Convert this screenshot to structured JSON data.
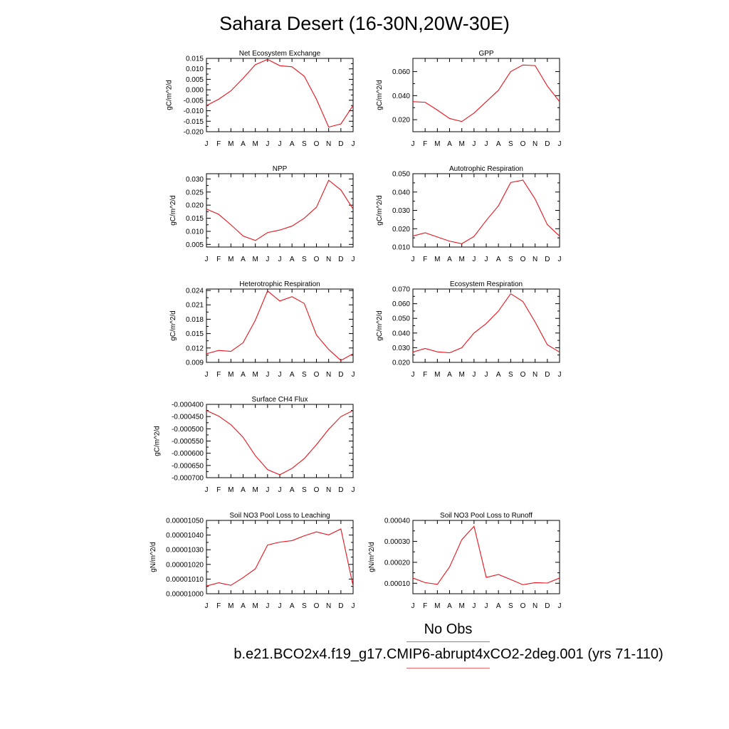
{
  "title": "Sahara Desert (16-30N,20W-30E)",
  "months": [
    "J",
    "F",
    "M",
    "A",
    "M",
    "J",
    "J",
    "A",
    "S",
    "O",
    "N",
    "D",
    "J"
  ],
  "line_color": "#e8141e",
  "legend": {
    "obs_label": "No Obs",
    "obs_color": "#7a7ae6",
    "model_label": "b.e21.BCO2x4.f19_g17.CMIP6-abrupt4xCO2-2deg.001 (yrs 71-110)",
    "model_color": "#e86a6a"
  },
  "chart_data": [
    {
      "type": "line",
      "title": "Net Ecosystem Exchange",
      "ylabel": "gC/m^2/d",
      "ylim": [
        -0.02,
        0.015
      ],
      "yticks": [
        0.015,
        0.01,
        0.005,
        0.0,
        -0.005,
        -0.01,
        -0.015,
        -0.02
      ],
      "ytick_labels": [
        "0.015",
        "0.010",
        "0.005",
        "0.000",
        "-0.005",
        "-0.010",
        "-0.015",
        "-0.020"
      ],
      "values": [
        -0.0075,
        -0.0045,
        -0.0005,
        0.0055,
        0.012,
        0.0145,
        0.0115,
        0.011,
        0.0065,
        -0.0045,
        -0.0178,
        -0.0163,
        -0.0075
      ]
    },
    {
      "type": "line",
      "title": "GPP",
      "ylabel": "gC/m^2/d",
      "ylim": [
        0.01,
        0.071
      ],
      "yticks": [
        0.06,
        0.04,
        0.02
      ],
      "ytick_labels": [
        "0.060",
        "0.040",
        "0.020"
      ],
      "values": [
        0.035,
        0.0345,
        0.028,
        0.021,
        0.0185,
        0.0255,
        0.035,
        0.0445,
        0.06,
        0.0655,
        0.065,
        0.048,
        0.035
      ]
    },
    {
      "type": "line",
      "title": "NPP",
      "ylabel": "gC/m^2/d",
      "ylim": [
        0.004,
        0.032
      ],
      "yticks": [
        0.03,
        0.025,
        0.02,
        0.015,
        0.01,
        0.005
      ],
      "ytick_labels": [
        "0.030",
        "0.025",
        "0.020",
        "0.015",
        "0.010",
        "0.005"
      ],
      "values": [
        0.0185,
        0.0165,
        0.0125,
        0.0082,
        0.0065,
        0.0095,
        0.0105,
        0.012,
        0.015,
        0.0192,
        0.0295,
        0.0258,
        0.0185
      ]
    },
    {
      "type": "line",
      "title": "Autotrophic Respiration",
      "ylabel": "gC/m^2/d",
      "ylim": [
        0.01,
        0.05
      ],
      "yticks": [
        0.05,
        0.04,
        0.03,
        0.02,
        0.01
      ],
      "ytick_labels": [
        "0.050",
        "0.040",
        "0.030",
        "0.020",
        "0.010"
      ],
      "values": [
        0.016,
        0.0178,
        0.0155,
        0.0132,
        0.0118,
        0.0158,
        0.0245,
        0.0325,
        0.0452,
        0.0465,
        0.0362,
        0.0222,
        0.016
      ]
    },
    {
      "type": "line",
      "title": "Heterotrophic Respiration",
      "ylabel": "gC/m^2/d",
      "ylim": [
        0.009,
        0.0243
      ],
      "yticks": [
        0.024,
        0.021,
        0.018,
        0.015,
        0.012,
        0.009
      ],
      "ytick_labels": [
        "0.024",
        "0.021",
        "0.018",
        "0.015",
        "0.012",
        "0.009"
      ],
      "values": [
        0.0108,
        0.0115,
        0.0113,
        0.0131,
        0.0178,
        0.0239,
        0.0218,
        0.0227,
        0.0213,
        0.0147,
        0.0117,
        0.0094,
        0.0108
      ]
    },
    {
      "type": "line",
      "title": "Ecosystem Respiration",
      "ylabel": "gC/m^2/d",
      "ylim": [
        0.02,
        0.07
      ],
      "yticks": [
        0.07,
        0.06,
        0.05,
        0.04,
        0.03,
        0.02
      ],
      "ytick_labels": [
        "0.070",
        "0.060",
        "0.050",
        "0.040",
        "0.030",
        "0.020"
      ],
      "values": [
        0.027,
        0.0295,
        0.0272,
        0.0265,
        0.03,
        0.04,
        0.0465,
        0.055,
        0.0668,
        0.0615,
        0.0475,
        0.032,
        0.027
      ]
    },
    {
      "type": "line",
      "title": "Surface CH4 Flux",
      "ylabel": "gC/m^2/d",
      "ylim": [
        -0.0007,
        -0.0004
      ],
      "yticks": [
        -0.0004,
        -0.00045,
        -0.0005,
        -0.00055,
        -0.0006,
        -0.00065,
        -0.0007
      ],
      "ytick_labels": [
        "-0.000400",
        "-0.000450",
        "-0.000500",
        "-0.000550",
        "-0.000600",
        "-0.000650",
        "-0.000700"
      ],
      "values": [
        -0.000425,
        -0.000448,
        -0.000483,
        -0.000535,
        -0.00061,
        -0.000667,
        -0.000688,
        -0.000662,
        -0.000622,
        -0.000565,
        -0.000502,
        -0.00045,
        -0.000425
      ]
    },
    {
      "type": "line",
      "title": "Soil NO3 Pool Loss to Leaching",
      "ylabel": "gN/m^2/d",
      "ylim": [
        1e-05,
        1.05e-05
      ],
      "yticks": [
        1.05e-05,
        1.04e-05,
        1.03e-05,
        1.02e-05,
        1.01e-05,
        1e-05
      ],
      "ytick_labels": [
        "0.00001050",
        "0.00001040",
        "0.00001030",
        "0.00001020",
        "0.00001010",
        "0.00001000"
      ],
      "values": [
        1.00525e-05,
        1.0075e-05,
        1.00575e-05,
        1.011e-05,
        1.017e-05,
        1.0332e-05,
        1.0352e-05,
        1.0362e-05,
        1.0395e-05,
        1.0422e-05,
        1.0401e-05,
        1.0442e-05,
        1.00525e-05
      ]
    },
    {
      "type": "line",
      "title": "Soil NO3 Pool Loss to Runoff",
      "ylabel": "gN/m^2/d",
      "ylim": [
        5e-05,
        0.0004
      ],
      "yticks": [
        0.0004,
        0.0003,
        0.0002,
        0.0001
      ],
      "ytick_labels": [
        "0.00040",
        "0.00030",
        "0.00020",
        "0.00010"
      ],
      "values": [
        0.000125,
        0.000103,
        9.5e-05,
        0.000178,
        0.000308,
        0.000372,
        0.000128,
        0.000142,
        0.000118,
        9.3e-05,
        0.000103,
        0.000101,
        0.000125
      ]
    }
  ]
}
